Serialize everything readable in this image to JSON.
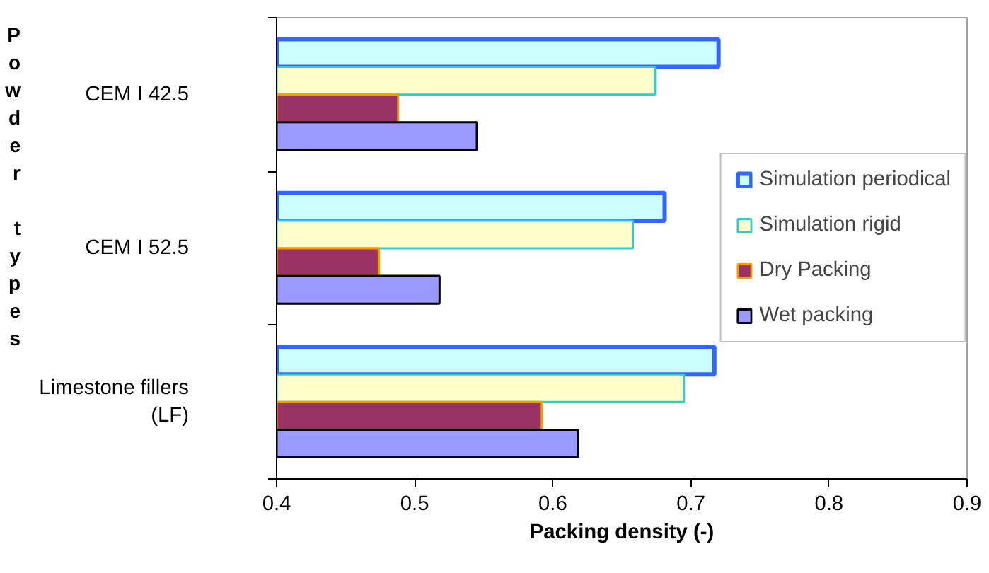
{
  "chart_data": {
    "type": "bar",
    "orientation": "horizontal",
    "xlabel": "Packing density (-)",
    "ylabel": "Powder types",
    "categories": [
      "CEM I 42.5",
      "CEM I 52.5",
      "Limestone fillers (LF)"
    ],
    "series": [
      {
        "name": "Simulation periodical",
        "color": "#ccffff",
        "values": [
          0.72,
          0.681,
          0.717
        ]
      },
      {
        "name": "Simulation rigid",
        "color": "#ffffcc",
        "values": [
          0.674,
          0.658,
          0.695
        ]
      },
      {
        "name": "Dry Packing",
        "color": "#993366",
        "values": [
          0.488,
          0.474,
          0.592
        ]
      },
      {
        "name": "Wet packing",
        "color": "#9999ff",
        "values": [
          0.545,
          0.518,
          0.618
        ]
      }
    ],
    "xlim": [
      0.4,
      0.9
    ],
    "xticks": [
      0.4,
      0.5,
      0.6,
      0.7,
      0.8,
      0.9
    ],
    "grid": false,
    "legend": "right"
  }
}
